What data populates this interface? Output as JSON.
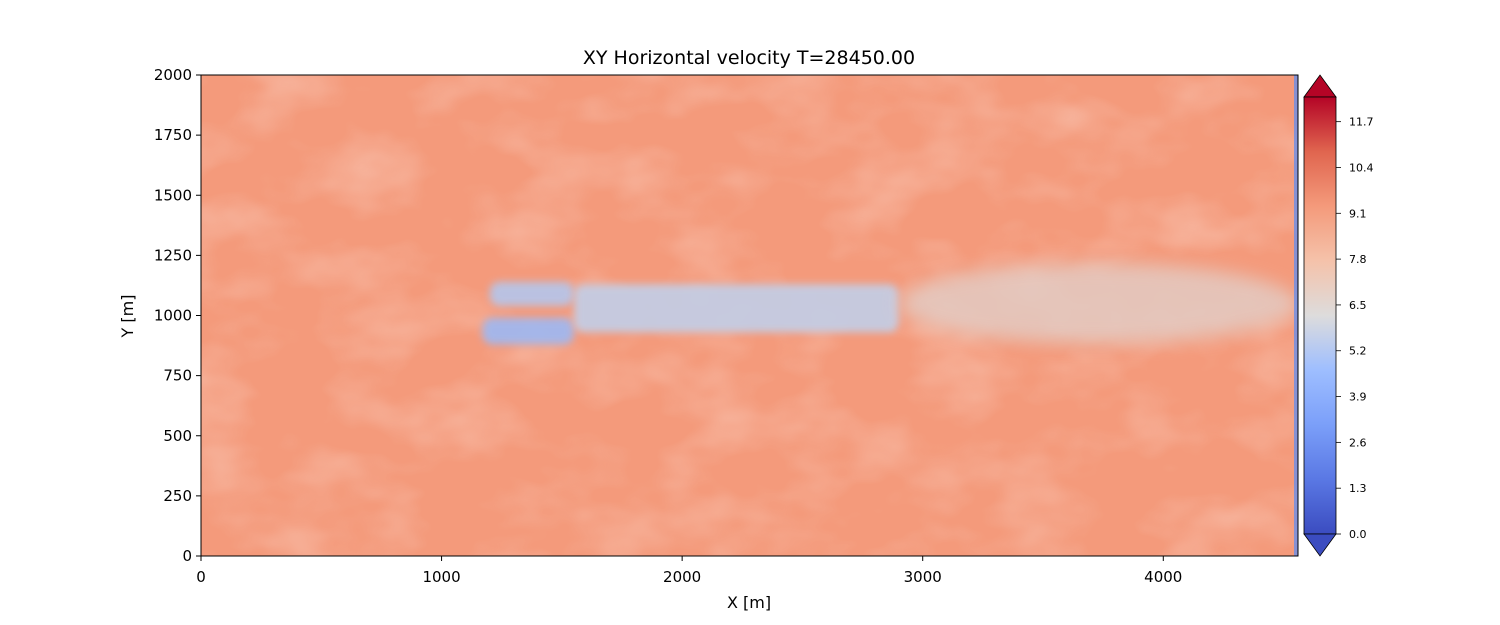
{
  "chart_data": {
    "type": "heatmap",
    "title": "XY Horizontal velocity T=28450.00",
    "xlabel": "X [m]",
    "ylabel": "Y [m]",
    "xlim": [
      0,
      4560
    ],
    "ylim": [
      0,
      2000
    ],
    "x_ticks": [
      0,
      1000,
      2000,
      3000,
      4000
    ],
    "y_ticks": [
      0,
      250,
      500,
      750,
      1000,
      1250,
      1500,
      1750,
      2000
    ],
    "colormap": "coolwarm",
    "colors": {
      "low": "#3b4cc0",
      "mid": "#dddddd",
      "high": "#b40426"
    },
    "background_value": 9.3,
    "colorbar": {
      "min": 0.0,
      "max": 12.4,
      "extend": "both",
      "ticks": [
        "0.0",
        "1.3",
        "2.6",
        "3.9",
        "5.2",
        "6.5",
        "7.8",
        "9.1",
        "10.4",
        "11.7"
      ]
    },
    "wake_regions": [
      {
        "name": "upper rotor wake",
        "x": [
          1200,
          1550
        ],
        "y": [
          1040,
          1140
        ],
        "value": 5.0
      },
      {
        "name": "lower rotor wake",
        "x": [
          1170,
          1550
        ],
        "y": [
          880,
          990
        ],
        "value": 4.3
      },
      {
        "name": "merged near wake",
        "x": [
          1550,
          2900
        ],
        "y": [
          930,
          1130
        ],
        "value": 5.4
      },
      {
        "name": "far wake",
        "x": [
          2900,
          4560
        ],
        "y": [
          850,
          1250
        ],
        "value": 7.0
      }
    ]
  }
}
